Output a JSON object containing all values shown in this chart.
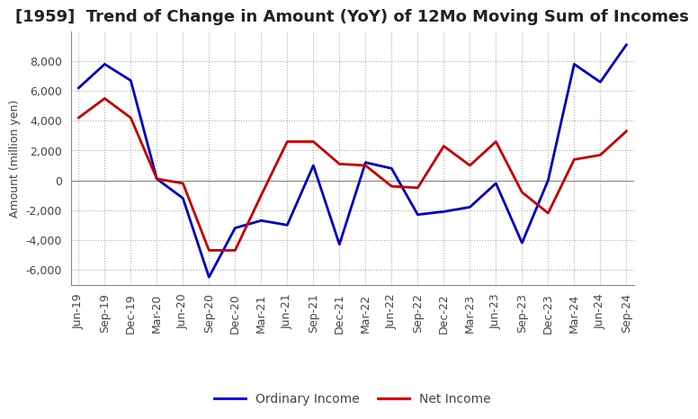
{
  "title": "[1959]  Trend of Change in Amount (YoY) of 12Mo Moving Sum of Incomes",
  "ylabel": "Amount (million yen)",
  "x_labels": [
    "Jun-19",
    "Sep-19",
    "Dec-19",
    "Mar-20",
    "Jun-20",
    "Sep-20",
    "Dec-20",
    "Mar-21",
    "Jun-21",
    "Sep-21",
    "Dec-21",
    "Mar-22",
    "Jun-22",
    "Sep-22",
    "Dec-22",
    "Mar-23",
    "Jun-23",
    "Sep-23",
    "Dec-23",
    "Mar-24",
    "Jun-24",
    "Sep-24"
  ],
  "ordinary_income": [
    6200,
    7800,
    6700,
    100,
    -1200,
    -6500,
    -3200,
    -2700,
    -3000,
    1000,
    -4300,
    1200,
    800,
    -2300,
    -2100,
    -1800,
    -200,
    -4200,
    0,
    7800,
    6600,
    9100
  ],
  "net_income": [
    4200,
    5500,
    4200,
    100,
    -200,
    -4700,
    -4700,
    -1000,
    2600,
    2600,
    1100,
    1000,
    -400,
    -500,
    2300,
    1000,
    2600,
    -800,
    -2200,
    1400,
    1700,
    3300
  ],
  "ordinary_color": "#0000cc",
  "net_color": "#cc0000",
  "ylim": [
    -7000,
    10000
  ],
  "yticks": [
    -6000,
    -4000,
    -2000,
    0,
    2000,
    4000,
    6000,
    8000
  ],
  "background_color": "#ffffff",
  "grid_color": "#aaaaaa",
  "title_fontsize": 13,
  "axis_fontsize": 9,
  "legend_fontsize": 10,
  "tick_fontsize": 9
}
